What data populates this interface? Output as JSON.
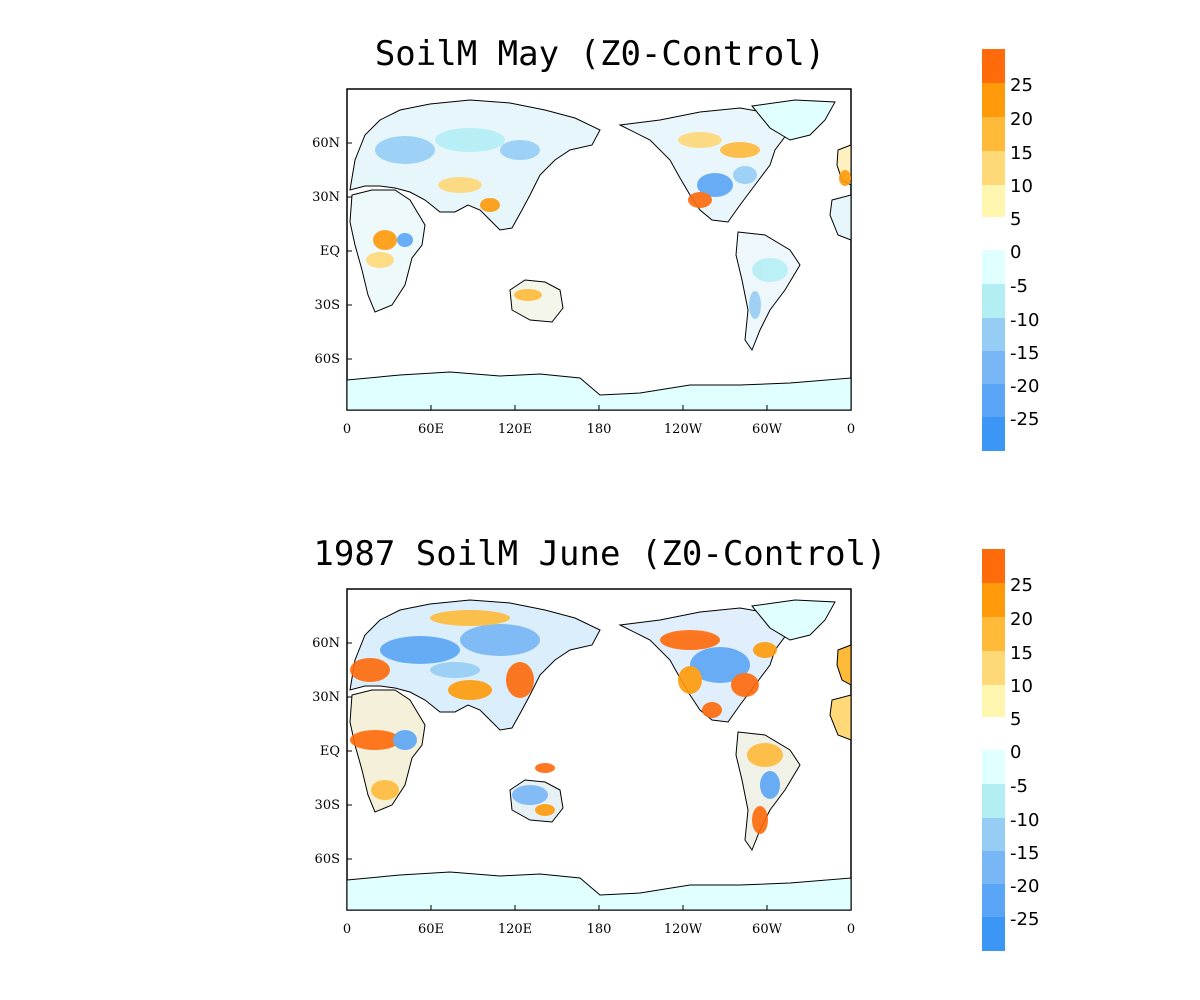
{
  "panels": [
    {
      "title": "SoilM May (Z0-Control)",
      "lat_ticks": [
        "60N",
        "30N",
        "EQ",
        "30S",
        "60S"
      ],
      "lon_ticks": [
        "0",
        "60E",
        "120E",
        "180",
        "120W",
        "60W",
        "0"
      ]
    },
    {
      "title": "1987 SoilM June (Z0-Control)",
      "lat_ticks": [
        "60N",
        "30N",
        "EQ",
        "30S",
        "60S"
      ],
      "lon_ticks": [
        "0",
        "60E",
        "120E",
        "180",
        "120W",
        "60W",
        "0"
      ]
    }
  ],
  "colorbar": {
    "labels": [
      "25",
      "20",
      "15",
      "10",
      "5",
      "0",
      "-5",
      "-10",
      "-15",
      "-20",
      "-25"
    ],
    "positive_colors": [
      "#ff6a0a",
      "#ff9a0a",
      "#ffba3a",
      "#ffd878",
      "#fff7b0"
    ],
    "negative_colors": [
      "#e0ffff",
      "#b4eef5",
      "#96cdf5",
      "#78b6f5",
      "#5aa5f5",
      "#3c96f5"
    ]
  },
  "map_colors": {
    "land_neutral": "#e0ffff",
    "coast": "#000000"
  }
}
